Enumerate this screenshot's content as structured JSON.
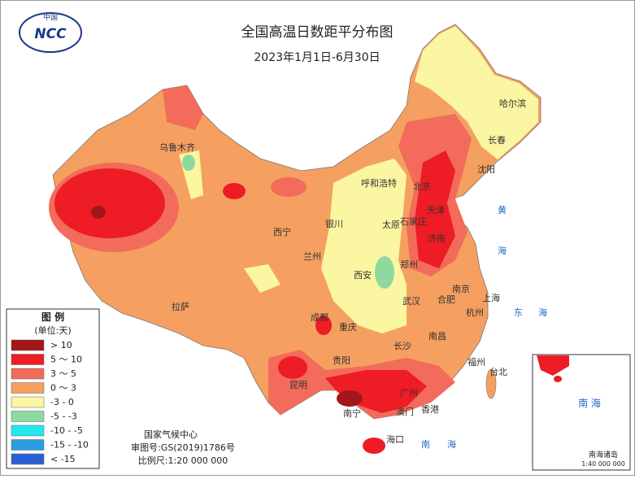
{
  "header": {
    "logo_top": "中国",
    "logo": "NCC",
    "title": "全国高温日数距平分布图",
    "subtitle": "2023年1月1日-6月30日"
  },
  "legend": {
    "title": "图 例",
    "unit": "(单位:天)",
    "items": [
      {
        "label": "> 10",
        "color": "#a3161a"
      },
      {
        "label": "5 ～ 10",
        "color": "#ee1c24"
      },
      {
        "label": "3 ～ 5",
        "color": "#f26b5b"
      },
      {
        "label": "0 ～ 3",
        "color": "#f5a060"
      },
      {
        "label": "-3 - 0",
        "color": "#fbf6a2"
      },
      {
        "label": "-5 - -3",
        "color": "#8fd9a0"
      },
      {
        "label": "-10 - -5",
        "color": "#22e8f0"
      },
      {
        "label": "-15 - -10",
        "color": "#2a9de0"
      },
      {
        "label": "< -15",
        "color": "#2b5fd8"
      }
    ]
  },
  "cities": [
    "哈尔滨",
    "长春",
    "沈阳",
    "呼和浩特",
    "北京",
    "天津",
    "石家庄",
    "太原",
    "济南",
    "银川",
    "西宁",
    "兰州",
    "郑州",
    "西安",
    "南京",
    "合肥",
    "上海",
    "杭州",
    "武汉",
    "拉萨",
    "成都",
    "重庆",
    "长沙",
    "南昌",
    "福州",
    "台北",
    "贵阳",
    "昆明",
    "南宁",
    "广州",
    "澳门",
    "香港",
    "海口",
    "乌鲁木齐"
  ],
  "seas": [
    "黄",
    "海",
    "东",
    "海",
    "南",
    "海"
  ],
  "credits": {
    "org": "国家气候中心",
    "review": "审图号:GS(2019)1786号",
    "scale": "比例尺:1:20 000 000"
  },
  "inset": {
    "sea": "南 海",
    "title": "南海诸岛",
    "scale": "1:40 000 000"
  }
}
